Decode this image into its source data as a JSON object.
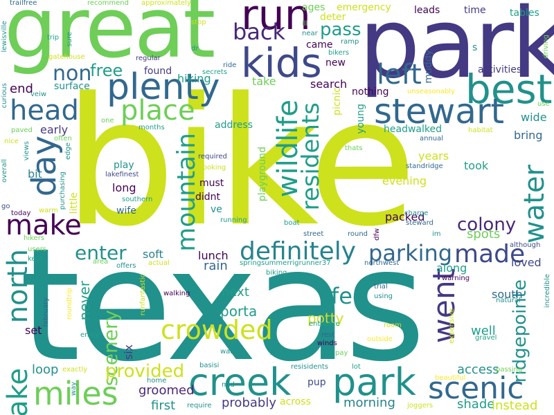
{
  "words": {
    "bike": "bike",
    "texas": "texas",
    "great": "great",
    "park_big": "park",
    "park_small": "park",
    "kids": "kids",
    "run": "run",
    "plenty": "plenty",
    "best": "best",
    "head": "head",
    "place": "place",
    "stewart": "stewart",
    "day": "day",
    "make": "make",
    "left": "left",
    "back": "back",
    "mountain": "mountain",
    "wildlife": "wildlife",
    "residents": "residents",
    "water": "water",
    "definitely": "definitely",
    "parking": "parking",
    "made": "made",
    "went": "went",
    "lake": "lake",
    "north": "north",
    "miles": "miles",
    "creek": "creek",
    "scenic": "scenic",
    "crowded": "crowded",
    "scenery": "scenery",
    "enter": "enter",
    "fee": "fee",
    "ridgepointe": "ridgepointe",
    "colony": "colony",
    "non": "non",
    "free": "free",
    "pass": "pass",
    "provided": "provided",
    "loop": "loop",
    "porta": "porta",
    "potty": "potty",
    "shade": "shade",
    "access": "access",
    "instead": "instead",
    "morning": "morning",
    "probably": "probably",
    "first": "first",
    "groomed": "groomed",
    "never": "never",
    "set": "set",
    "six": "six",
    "next": "next",
    "rain": "rain",
    "lunch": "lunch",
    "soft": "soft",
    "well": "well",
    "south": "south",
    "loved": "loved",
    "along": "along",
    "spots": "spots",
    "packed": "packed",
    "evening": "evening",
    "took": "took",
    "years": "years",
    "bring": "bring",
    "wide": "wide",
    "headwalked": "headwalked",
    "young": "young",
    "picnic": "picnic",
    "nothing": "nothing",
    "search": "search",
    "take": "take",
    "hiking": "hiking",
    "found": "found",
    "surface": "surface",
    "end": "end",
    "early": "early",
    "address": "address",
    "playground": "playground",
    "play": "play",
    "long": "long",
    "wife": "wife",
    "must": "must",
    "didnt": "didnt",
    "ve": "ve",
    "bit": "bit",
    "little": "little",
    "came": "came",
    "new": "new",
    "ages": "ages",
    "deter": "deter",
    "emergency": "emergency",
    "muddy": "muddy",
    "leads": "leads",
    "time": "time",
    "tables": "tables",
    "activities": "activities",
    "s": "s",
    "regular": "regular",
    "trailfree": "trailfree",
    "recommend": "recommend",
    "approximately": "approximately",
    "lewisville": "lewisville",
    "trip": "trip",
    "sure": "sure",
    "gatehouse": "gatehouse",
    "stop": "stop",
    "dr": "dr",
    "ill": "ill",
    "near": "near",
    "ramp": "ramp",
    "bikers": "bikers",
    "ride": "ride",
    "secrets": "secrets",
    "driving": "driving",
    "curious": "curious",
    "veiw": "veiw",
    "unseasonably": "unseasonably",
    "use": "use",
    "one": "one",
    "months": "months",
    "paved": "paved",
    "often": "often",
    "views": "views",
    "nice": "nice",
    "edge": "edge",
    "habitat": "habitat",
    "annual": "annual",
    "thats": "thats",
    "standridge": "standridge",
    "lakefinest": "lakefinest",
    "required": "required",
    "looking": "looking",
    "southern": "southern",
    "overall": "overall",
    "purchasing": "purchasing",
    "go": "go",
    "today": "today",
    "warm": "warm",
    "running": "running",
    "boat": "boat",
    "street": "street",
    "round": "round",
    "dfw": "dfw",
    "charge": "charge",
    "steward": "steward",
    "im": "im",
    "although": "although",
    "hikers": "hikers",
    "users": "users",
    "kept": "kept",
    "area": "area",
    "offers": "offers",
    "actual": "actual",
    "springsummerrigrunner37": "springsummerrigrunner37",
    "northwest": "northwest",
    "biking": "biking",
    "warning": "warning",
    "trial": "trial",
    "using": "using",
    "natural": "natural",
    "incredible": "incredible",
    "walking": "walking",
    "runfantastic": "runfantastic",
    "roundtrip": "roundtrip",
    "february": "february",
    "enjoy": "enjoy",
    "rest": "rest",
    "winds": "winds",
    "entrance": "entrance",
    "room": "room",
    "outside": "outside",
    "expensive": "expensive",
    "gravel": "gravel",
    "walk": "walk",
    "native": "native",
    "pay": "pay",
    "basisi": "basisi",
    "resisidents": "resisidents",
    "lot": "lot",
    "exactly": "exactly",
    "way": "way",
    "home": "home",
    "mid": "mid",
    "pup": "pup",
    "beautiful": "beautiful",
    "passing": "passing",
    "require": "require",
    "across": "across",
    "joggers": "joggers"
  }
}
